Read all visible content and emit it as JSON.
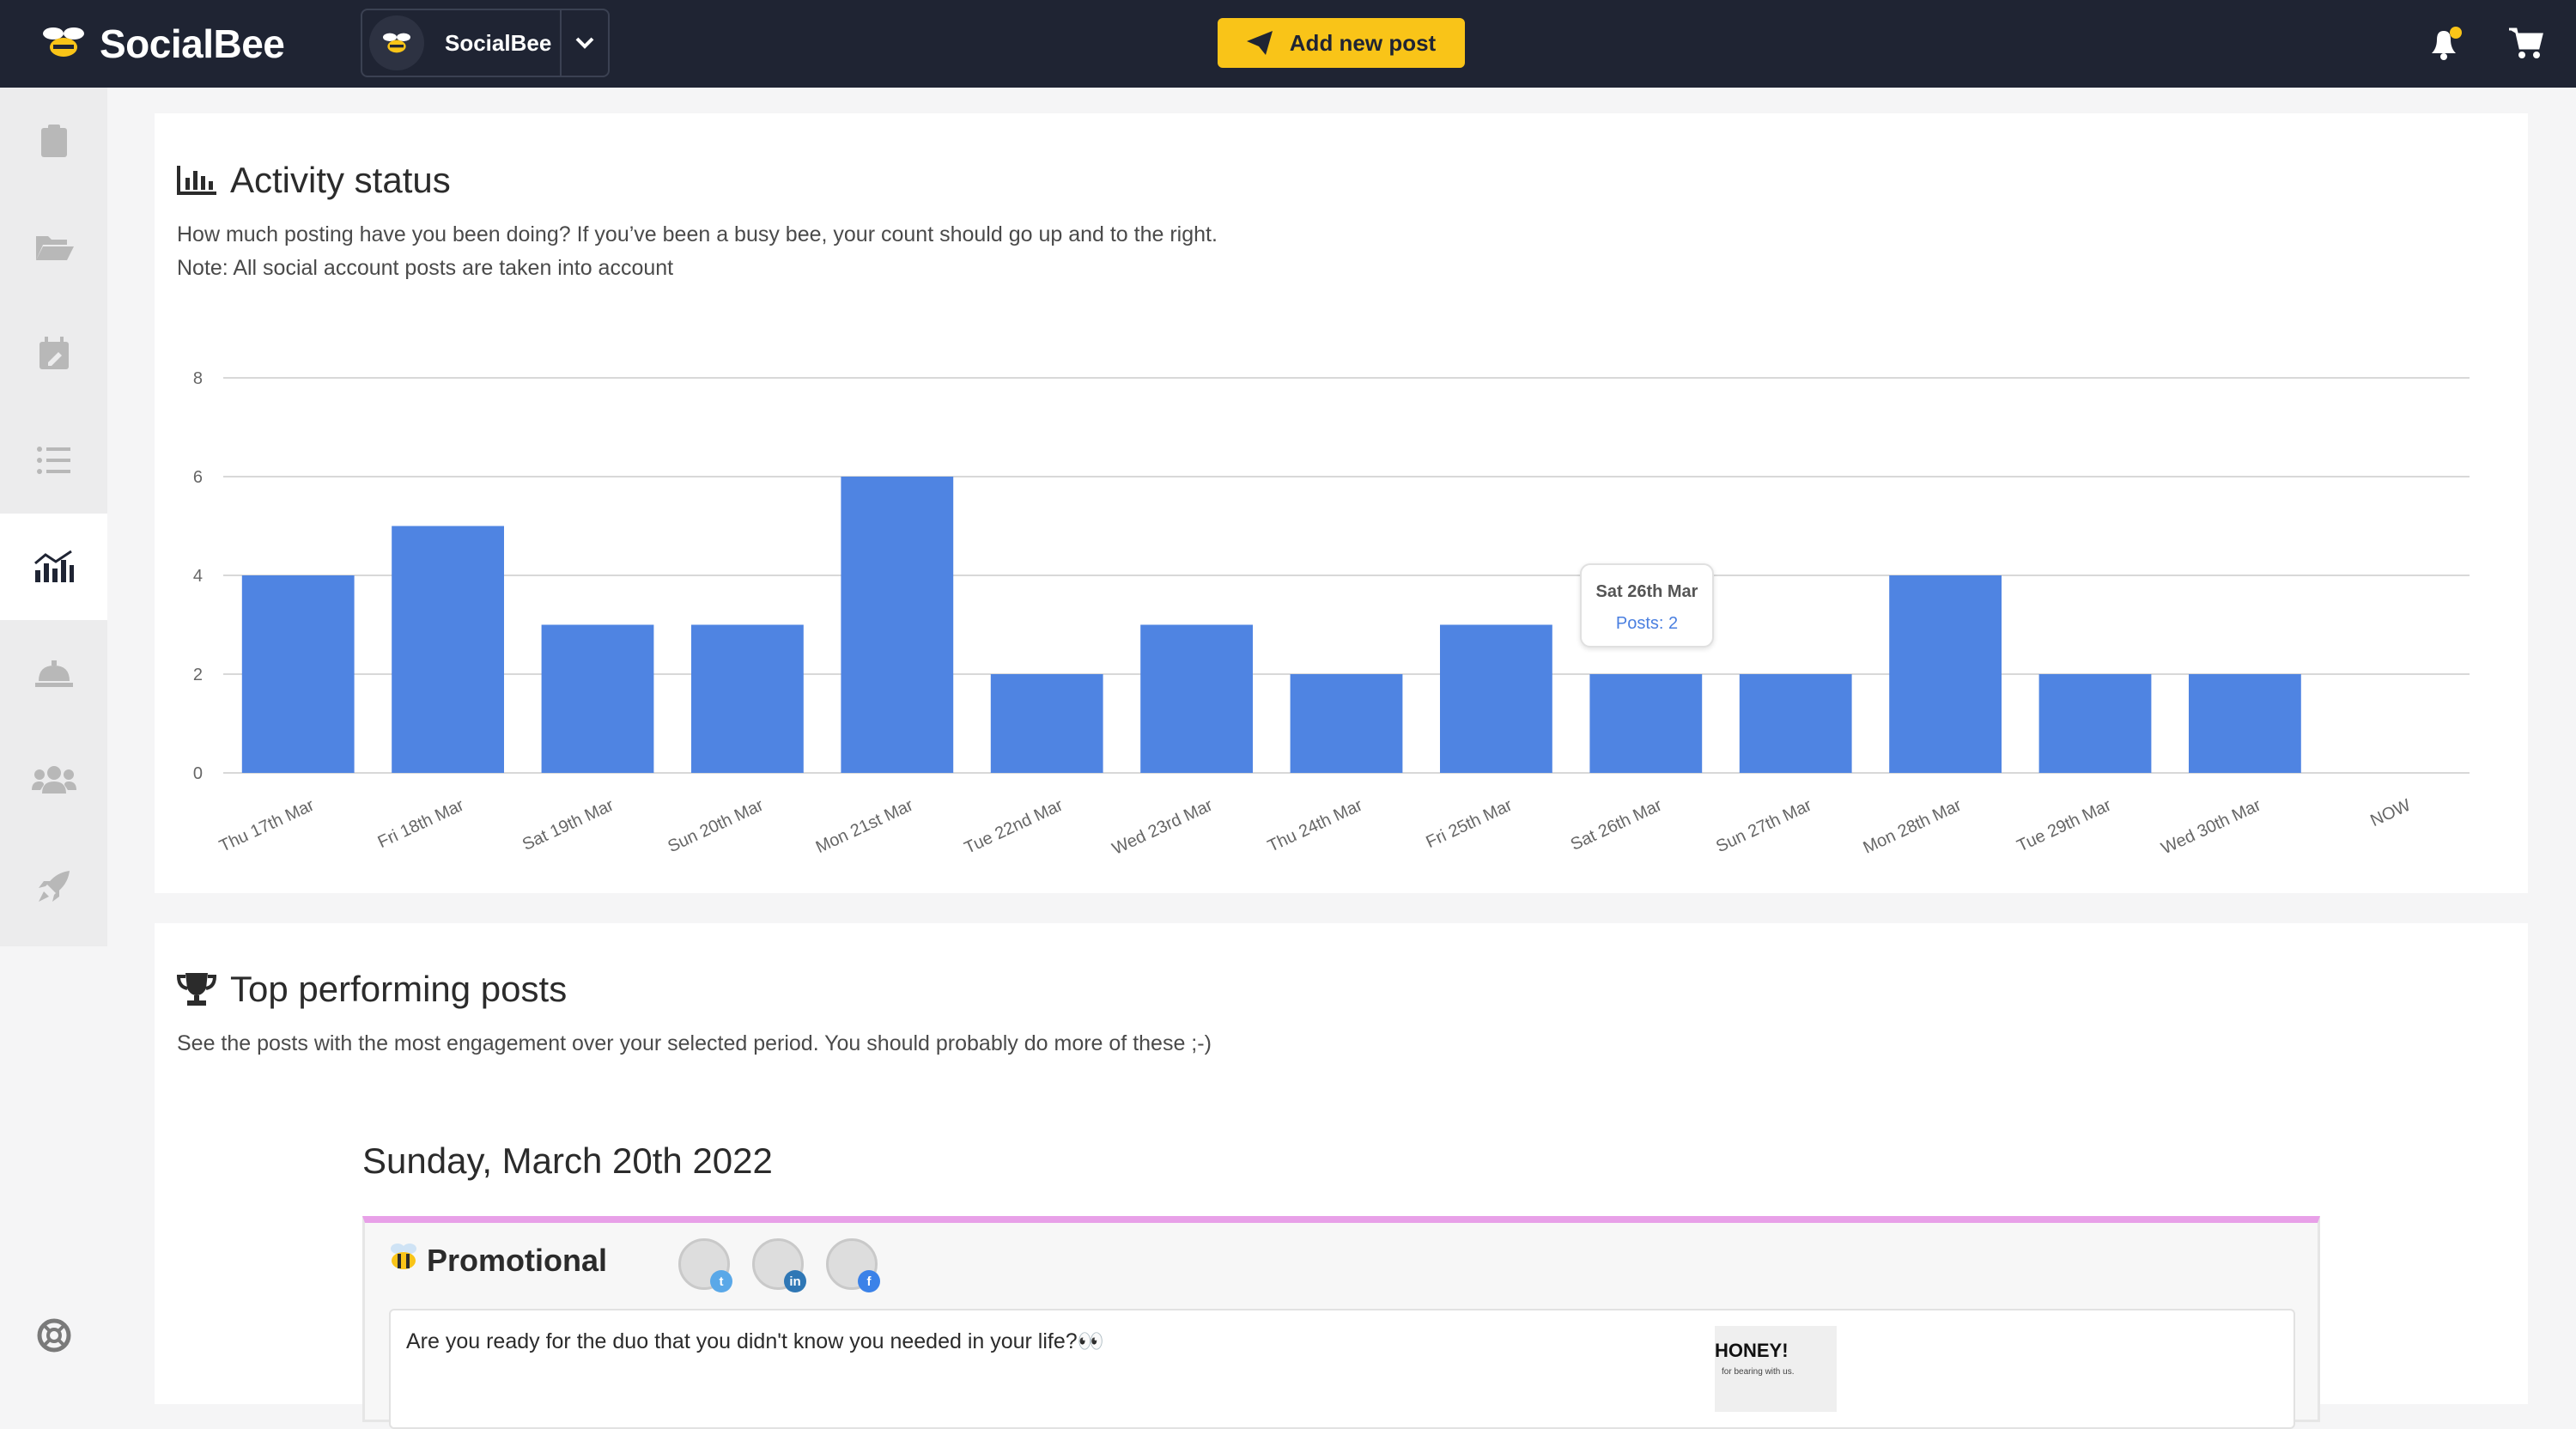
{
  "app": {
    "brand": "SocialBee",
    "account_name": "SocialBee",
    "add_post_label": "Add new post",
    "accent": "#f9c418"
  },
  "icons": [
    "bee-logo-icon",
    "chevron-down-icon",
    "paper-plane-icon",
    "bell-icon",
    "cart-icon",
    "clipboard-icon",
    "folder-open-icon",
    "calendar-edit-icon",
    "list-icon",
    "analytics-icon",
    "concierge-bell-icon",
    "users-icon",
    "rocket-icon",
    "lifebuoy-icon",
    "bar-chart-icon",
    "trophy-icon",
    "bee-emoji-icon",
    "twitter-icon",
    "linkedin-icon",
    "facebook-icon"
  ],
  "activity": {
    "title": "Activity status",
    "desc1": "How much posting have you been doing? If you’ve been a busy bee, your count should go up and to the right.",
    "desc2": "Note: All social account posts are taken into account"
  },
  "chart_data": {
    "type": "bar",
    "categories": [
      "Thu 17th Mar",
      "Fri 18th Mar",
      "Sat 19th Mar",
      "Sun 20th Mar",
      "Mon 21st Mar",
      "Tue 22nd Mar",
      "Wed 23rd Mar",
      "Thu 24th Mar",
      "Fri 25th Mar",
      "Sat 26th Mar",
      "Sun 27th Mar",
      "Mon 28th Mar",
      "Tue 29th Mar",
      "Wed 30th Mar",
      "NOW"
    ],
    "values": [
      4,
      5,
      3,
      3,
      6,
      2,
      3,
      2,
      3,
      2,
      2,
      4,
      2,
      2,
      null
    ],
    "ylim": [
      0,
      8
    ],
    "yticks": [
      "0",
      "2",
      "4",
      "6",
      "8"
    ],
    "grid": true,
    "color": "#4f84e2",
    "tooltip": {
      "title": "Sat 26th Mar",
      "label": "Posts: 2"
    }
  },
  "top": {
    "title": "Top performing posts",
    "desc": "See the posts with the most engagement over your selected period. You should probably do more of these ;-)",
    "date": "Sunday, March 20th 2022",
    "category": "Promotional",
    "post_text": "Are you ready for the duo that you didn't know you needed in your life?👀",
    "thumb_title": "HONEY!",
    "thumb_caption": "for bearing with us."
  }
}
